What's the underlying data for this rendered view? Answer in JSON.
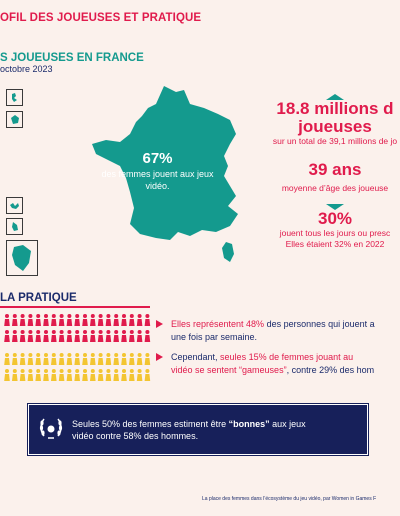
{
  "page_title": "OFIL DES JOUEUSES ET PRATIQUE",
  "section": {
    "title": "S JOUEUSES EN FRANCE",
    "subtitle": "octobre 2023"
  },
  "map": {
    "percent": "67%",
    "text": "des femmes jouent aux jeux vidéo.",
    "color": "#149a8e"
  },
  "stats": [
    {
      "big": "18.8 millions d",
      "big2": "joueuses",
      "small": "sur un total de 39,1 millions de jo",
      "marker": "up"
    },
    {
      "big": "39 ans",
      "small": "moyenne d’âge des joueuse"
    },
    {
      "big": "30%",
      "small": "jouent tous les jours ou presc",
      "small2": "Elles étaient 32% en 2022",
      "marker": "down"
    }
  ],
  "practice": {
    "title": "LA PRATIQUE",
    "icon_rows": [
      {
        "filled": 19,
        "total": 19,
        "color": "#e01b4c"
      },
      {
        "filled": 19,
        "total": 19,
        "color": "#e01b4c"
      },
      {
        "filled": 8,
        "total": 19,
        "color": "#f3c531",
        "empty_color": "#f3c531"
      },
      {
        "filled": 0,
        "total": 19,
        "color": "#f3c531"
      }
    ],
    "bullets": [
      {
        "hl": "Elles représentent 48%",
        "rest": " des personnes qui jouent a",
        "line2": "une fois par semaine."
      },
      {
        "pre": "Cependant, ",
        "hl": "seules 15% de femmes jouant au",
        "line2a_hl": "vidéo se sentent “gameuses”",
        "line2b": ", contre 29% des hom"
      }
    ]
  },
  "banner": {
    "line1_pre": "Seules 50% des femmes estiment être ",
    "line1_b": "“bonnes”",
    "line1_post": " aux jeux",
    "line2": "vidéo contre 58% des hommes.",
    "bg": "#17205a"
  },
  "footer": "La place des femmes dans l’écosystème du jeu vidéo, par Women in Games F"
}
